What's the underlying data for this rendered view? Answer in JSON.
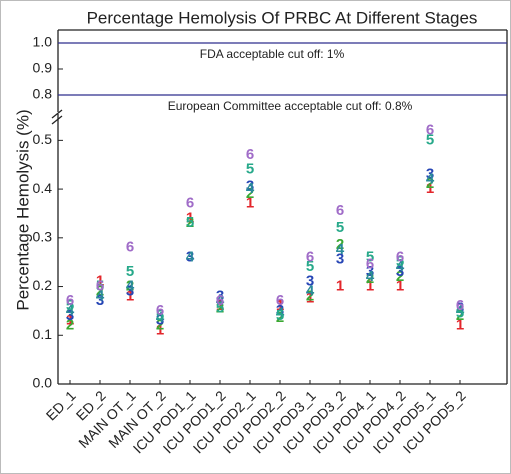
{
  "chart_data": {
    "type": "scatter",
    "title": "Percentage Hemolysis Of PRBC At Different Stages",
    "y_label": "Percentage Hemolysis (%)",
    "categories": [
      "ED_1",
      "ED_2",
      "MAIN OT_1",
      "MAIN OT_2",
      "ICU POD1_1",
      "ICU POD1_2",
      "ICU POD2_1",
      "ICU POD2_2",
      "ICU POD3_1",
      "ICU POD3_2",
      "ICU POD4_1",
      "ICU POD4_2",
      "ICU POD5_1",
      "ICU POD5_2"
    ],
    "series": [
      {
        "name": "1",
        "color": "#e3262b",
        "values": [
          0.13,
          0.21,
          0.18,
          0.11,
          0.34,
          0.16,
          0.37,
          0.16,
          0.175,
          0.2,
          0.2,
          0.2,
          0.4,
          0.12
        ]
      },
      {
        "name": "2",
        "color": "#3ba833",
        "values": [
          0.12,
          0.19,
          0.2,
          0.12,
          0.33,
          0.155,
          0.39,
          0.135,
          0.18,
          0.285,
          0.215,
          0.22,
          0.41,
          0.14
        ]
      },
      {
        "name": "3",
        "color": "#2645b5",
        "values": [
          0.14,
          0.17,
          0.19,
          0.13,
          0.26,
          0.18,
          0.405,
          0.15,
          0.21,
          0.255,
          0.23,
          0.23,
          0.43,
          0.155
        ]
      },
      {
        "name": "4",
        "color": "#2a8a9a",
        "values": [
          0.15,
          0.18,
          0.2,
          0.135,
          0.26,
          0.17,
          0.4,
          0.145,
          0.19,
          0.275,
          0.22,
          0.24,
          0.42,
          0.15
        ]
      },
      {
        "name": "5",
        "color": "#27a98a",
        "values": [
          0.16,
          0.2,
          0.23,
          0.14,
          0.33,
          0.155,
          0.44,
          0.14,
          0.24,
          0.32,
          0.26,
          0.25,
          0.5,
          0.145
        ]
      },
      {
        "name": "6",
        "color": "#a06cc8",
        "values": [
          0.17,
          0.2,
          0.28,
          0.15,
          0.37,
          0.17,
          0.47,
          0.17,
          0.26,
          0.355,
          0.245,
          0.26,
          0.52,
          0.16
        ]
      }
    ],
    "ylim": [
      0,
      0.55
    ],
    "yticks": [
      {
        "value": 0,
        "label": "0.0"
      },
      0.1,
      0.2,
      0.3,
      0.4,
      0.5
    ],
    "ylim_upper": [
      0.75,
      1.05
    ],
    "yticks_upper": [
      0.8,
      0.9,
      {
        "value": 1,
        "label": "1.0"
      }
    ],
    "reference_lines": [
      {
        "value": 1,
        "label": "FDA acceptable cut off: 1%",
        "color": "#2e2e8e"
      },
      {
        "value": 0.8,
        "label": "European Committee acceptable cut off: 0.8%",
        "color": "#2e2e8e"
      }
    ]
  }
}
